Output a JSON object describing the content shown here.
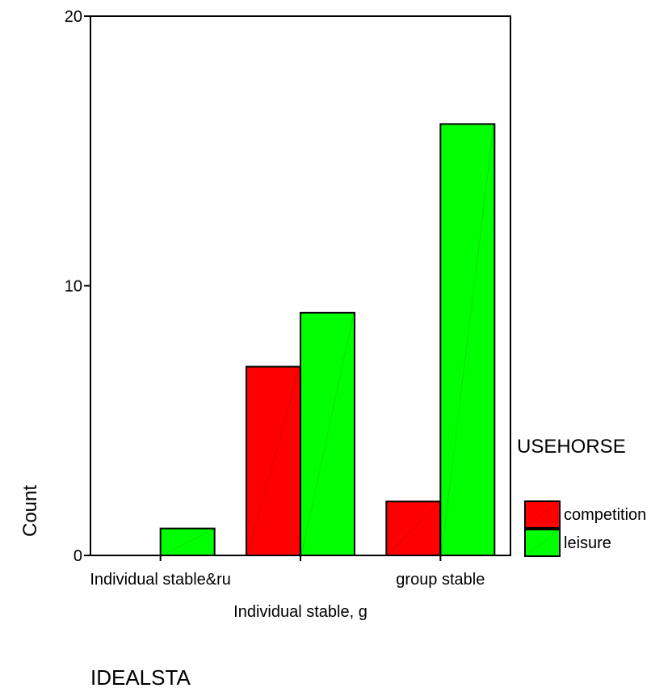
{
  "chart_data": {
    "type": "bar",
    "ylabel": "Count",
    "xlabel_lines": [
      "Individual stable, g",
      "IDEALSTA"
    ],
    "ylim": [
      0,
      20
    ],
    "yticks": [
      0,
      10,
      20
    ],
    "categories": [
      "Individual stable&ru",
      "Individual stable, g",
      "group stable"
    ],
    "category_tick_labels": [
      "Individual stable&ru",
      "",
      "group stable"
    ],
    "grid": false,
    "legend": {
      "title": "USEHORSE",
      "placement": "right"
    },
    "series": [
      {
        "name": "competition",
        "color": "#ff0000",
        "values": [
          0,
          7,
          2
        ]
      },
      {
        "name": "leisure",
        "color": "#00ff00",
        "values": [
          1,
          9,
          16
        ]
      }
    ]
  }
}
